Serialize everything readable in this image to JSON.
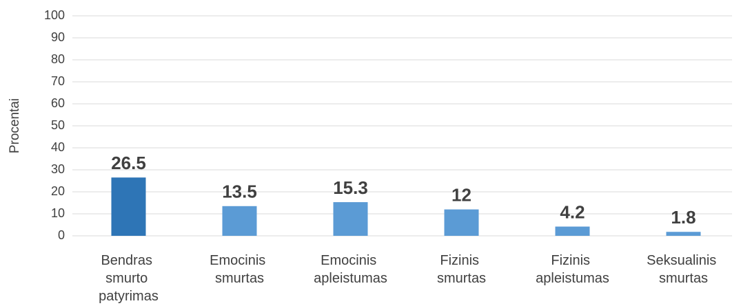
{
  "chart_data": {
    "type": "bar",
    "y_label": "Procentai",
    "categories": [
      "Bendras smurto patyrimas",
      "Emocinis smurtas",
      "Emocinis apleistumas",
      "Fizinis smurtas",
      "Fizinis apleistumas",
      "Seksualinis smurtas"
    ],
    "values": [
      26.5,
      13.5,
      15.3,
      12,
      4.2,
      1.8
    ],
    "colors": [
      "#2e75b6",
      "#5b9bd5",
      "#5b9bd5",
      "#5b9bd5",
      "#5b9bd5",
      "#5b9bd5"
    ],
    "ylim": [
      0,
      100
    ],
    "yticks": [
      0,
      10,
      20,
      30,
      40,
      50,
      60,
      70,
      80,
      90,
      100
    ],
    "grid": true
  }
}
